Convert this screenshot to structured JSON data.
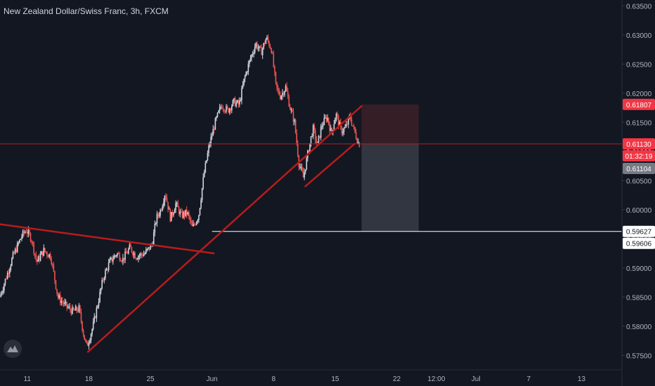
{
  "title": "New Zealand Dollar/Swiss Franc, 3h, FXCM",
  "logo_icon": "tradingview-logo-icon",
  "colors": {
    "background": "#131722",
    "up": "#d1d4dc",
    "down": "#ef5350",
    "trendline": "#b71c1c",
    "stop_zone": "#3b1f28",
    "target_zone": "#363a45",
    "price_tag": "#f23645",
    "axis_text": "#b2b5be"
  },
  "chart_data": {
    "type": "candlestick",
    "ylim": [
      0.5725,
      0.636
    ],
    "y_ticks": [
      "0.57500",
      "0.58000",
      "0.58500",
      "0.59000",
      "0.59500",
      "0.60000",
      "0.60500",
      "0.61000",
      "0.61500",
      "0.62000",
      "0.62500",
      "0.63000",
      "0.63500"
    ],
    "x_ticks": [
      {
        "label": "11",
        "day": 11
      },
      {
        "label": "18",
        "day": 18
      },
      {
        "label": "25",
        "day": 25
      },
      {
        "label": "Jun",
        "day": 32
      },
      {
        "label": "8",
        "day": 39
      },
      {
        "label": "15",
        "day": 46
      },
      {
        "label": "22",
        "day": 53
      },
      {
        "label": "12:00",
        "day": 57.5
      },
      {
        "label": "Jul",
        "day": 62
      },
      {
        "label": "7",
        "day": 68
      },
      {
        "label": "13",
        "day": 74
      }
    ],
    "price_path": [
      [
        8.0,
        0.585
      ],
      [
        9.5,
        0.592
      ],
      [
        10.5,
        0.5955
      ],
      [
        11.0,
        0.5965
      ],
      [
        11.6,
        0.595
      ],
      [
        12.2,
        0.591
      ],
      [
        13.0,
        0.593
      ],
      [
        13.8,
        0.592
      ],
      [
        14.6,
        0.585
      ],
      [
        15.5,
        0.5835
      ],
      [
        16.3,
        0.5825
      ],
      [
        17.0,
        0.583
      ],
      [
        17.6,
        0.578
      ],
      [
        17.9,
        0.5765
      ],
      [
        18.6,
        0.58
      ],
      [
        19.3,
        0.585
      ],
      [
        19.8,
        0.5885
      ],
      [
        20.5,
        0.591
      ],
      [
        21.3,
        0.5925
      ],
      [
        22.0,
        0.5915
      ],
      [
        22.8,
        0.5935
      ],
      [
        23.5,
        0.592
      ],
      [
        24.5,
        0.5925
      ],
      [
        25.3,
        0.594
      ],
      [
        25.8,
        0.5985
      ],
      [
        26.3,
        0.6
      ],
      [
        26.8,
        0.603
      ],
      [
        27.4,
        0.5985
      ],
      [
        28.0,
        0.601
      ],
      [
        28.6,
        0.599
      ],
      [
        29.3,
        0.5995
      ],
      [
        29.9,
        0.5968
      ],
      [
        30.6,
        0.599
      ],
      [
        31.2,
        0.606
      ],
      [
        31.8,
        0.611
      ],
      [
        32.5,
        0.615
      ],
      [
        33.2,
        0.618
      ],
      [
        33.9,
        0.617
      ],
      [
        34.6,
        0.6185
      ],
      [
        35.2,
        0.618
      ],
      [
        35.8,
        0.6225
      ],
      [
        36.5,
        0.626
      ],
      [
        37.1,
        0.6285
      ],
      [
        37.7,
        0.627
      ],
      [
        38.3,
        0.6295
      ],
      [
        38.9,
        0.6275
      ],
      [
        39.4,
        0.621
      ],
      [
        39.9,
        0.6195
      ],
      [
        40.5,
        0.621
      ],
      [
        41.0,
        0.6175
      ],
      [
        41.5,
        0.615
      ],
      [
        42.0,
        0.608
      ],
      [
        42.5,
        0.6055
      ],
      [
        43.0,
        0.6095
      ],
      [
        43.6,
        0.614
      ],
      [
        44.1,
        0.611
      ],
      [
        44.6,
        0.6145
      ],
      [
        45.2,
        0.616
      ],
      [
        45.7,
        0.613
      ],
      [
        46.2,
        0.6165
      ],
      [
        46.8,
        0.6135
      ],
      [
        47.3,
        0.614
      ],
      [
        47.8,
        0.616
      ],
      [
        48.3,
        0.6135
      ],
      [
        48.8,
        0.6113
      ]
    ],
    "trendlines": [
      {
        "name": "resistance-line",
        "from": [
          7.9,
          0.5975
        ],
        "to": [
          32.2,
          0.5925
        ]
      },
      {
        "name": "support-line",
        "from": [
          17.9,
          0.5756
        ],
        "to": [
          49.0,
          0.6178
        ]
      },
      {
        "name": "channel-line",
        "from": [
          42.6,
          0.604
        ],
        "to": [
          48.2,
          0.6113
        ]
      }
    ],
    "horizontal_lines": [
      {
        "name": "current-price-line",
        "price": 0.6113,
        "color": "#b71c1c"
      },
      {
        "name": "target-line",
        "price": 0.59627,
        "color": "#ffffff",
        "from_day": 32.0
      }
    ],
    "position": {
      "entry": 0.6113,
      "stop": 0.61807,
      "target": 0.59627,
      "from_day": 49.0,
      "to_day": 55.5
    },
    "price_labels": [
      {
        "name": "stop-price-label",
        "text": "0.61807",
        "price": 0.61807,
        "bg": "#f23645",
        "fg": "#ffffff"
      },
      {
        "name": "current-price-label",
        "text": "0.61130",
        "price": 0.6113,
        "bg": "#f23645",
        "fg": "#ffffff"
      },
      {
        "name": "countdown-label",
        "text": "01:32:19",
        "price": 0.61,
        "bg": "#f23645",
        "fg": "#ffffff"
      },
      {
        "name": "entry-price-label",
        "text": "0.61104",
        "price": 0.61104,
        "bg": "#787b86",
        "fg": "#ffffff"
      },
      {
        "name": "target-price-label",
        "text": "0.59627",
        "price": 0.59627,
        "bg": "#ffffff",
        "fg": "#131722"
      },
      {
        "name": "low-price-label",
        "text": "0.59606",
        "price": 0.59606,
        "bg": "#ffffff",
        "fg": "#131722"
      }
    ]
  }
}
